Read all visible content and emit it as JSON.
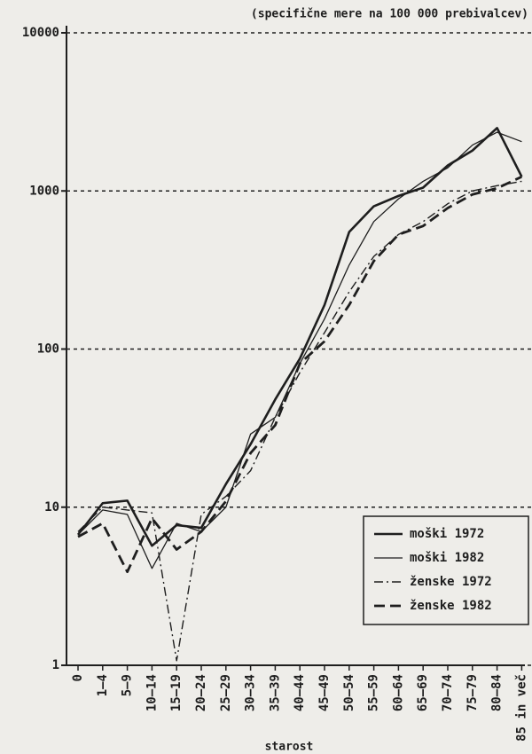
{
  "chart_data": {
    "type": "line",
    "title": "(specifične mere na 100 000 prebivalcev)",
    "x_label": "starost",
    "categories": [
      "0",
      "1–4",
      "5–9",
      "10–14",
      "15–19",
      "20–24",
      "25–29",
      "30–34",
      "35–39",
      "40–44",
      "45–49",
      "50–54",
      "55–59",
      "60–64",
      "65–69",
      "70–74",
      "75–79",
      "80–84",
      "85 in več"
    ],
    "log_scale": true,
    "ylim": [
      1,
      10000
    ],
    "yticks": [
      1,
      10,
      100,
      1000,
      10000
    ],
    "grid": true,
    "legend": "lower right",
    "series": [
      {
        "name": "moški 1972",
        "color": "#1e1e1e",
        "linestyle": "solid",
        "linewidth": 2.6,
        "values": [
          6.7,
          10.6,
          11,
          5.7,
          7.7,
          7.4,
          14,
          25,
          48,
          87,
          190,
          550,
          800,
          930,
          1050,
          1450,
          1800,
          2500,
          1230
        ]
      },
      {
        "name": "moški 1982",
        "color": "#1e1e1e",
        "linestyle": "solid",
        "linewidth": 1.3,
        "values": [
          6.7,
          9.6,
          9,
          4.1,
          7.9,
          7,
          10,
          29,
          37,
          81,
          155,
          340,
          640,
          890,
          1150,
          1400,
          1950,
          2350,
          2050
        ]
      },
      {
        "name": "ženske 1972",
        "color": "#1e1e1e",
        "linestyle": "dashdot",
        "linewidth": 1.4,
        "values": [
          7,
          10,
          9.6,
          9.2,
          1.07,
          9,
          11.7,
          17,
          37,
          71,
          127,
          230,
          385,
          530,
          640,
          830,
          1000,
          1080,
          1150
        ]
      },
      {
        "name": "ženske 1982",
        "color": "#1e1e1e",
        "linestyle": "dashed",
        "linewidth": 2.8,
        "values": [
          6.5,
          7.9,
          3.9,
          8.5,
          5.4,
          7,
          10.9,
          22,
          33,
          81,
          112,
          190,
          360,
          530,
          600,
          780,
          950,
          1040,
          1230
        ]
      }
    ]
  }
}
